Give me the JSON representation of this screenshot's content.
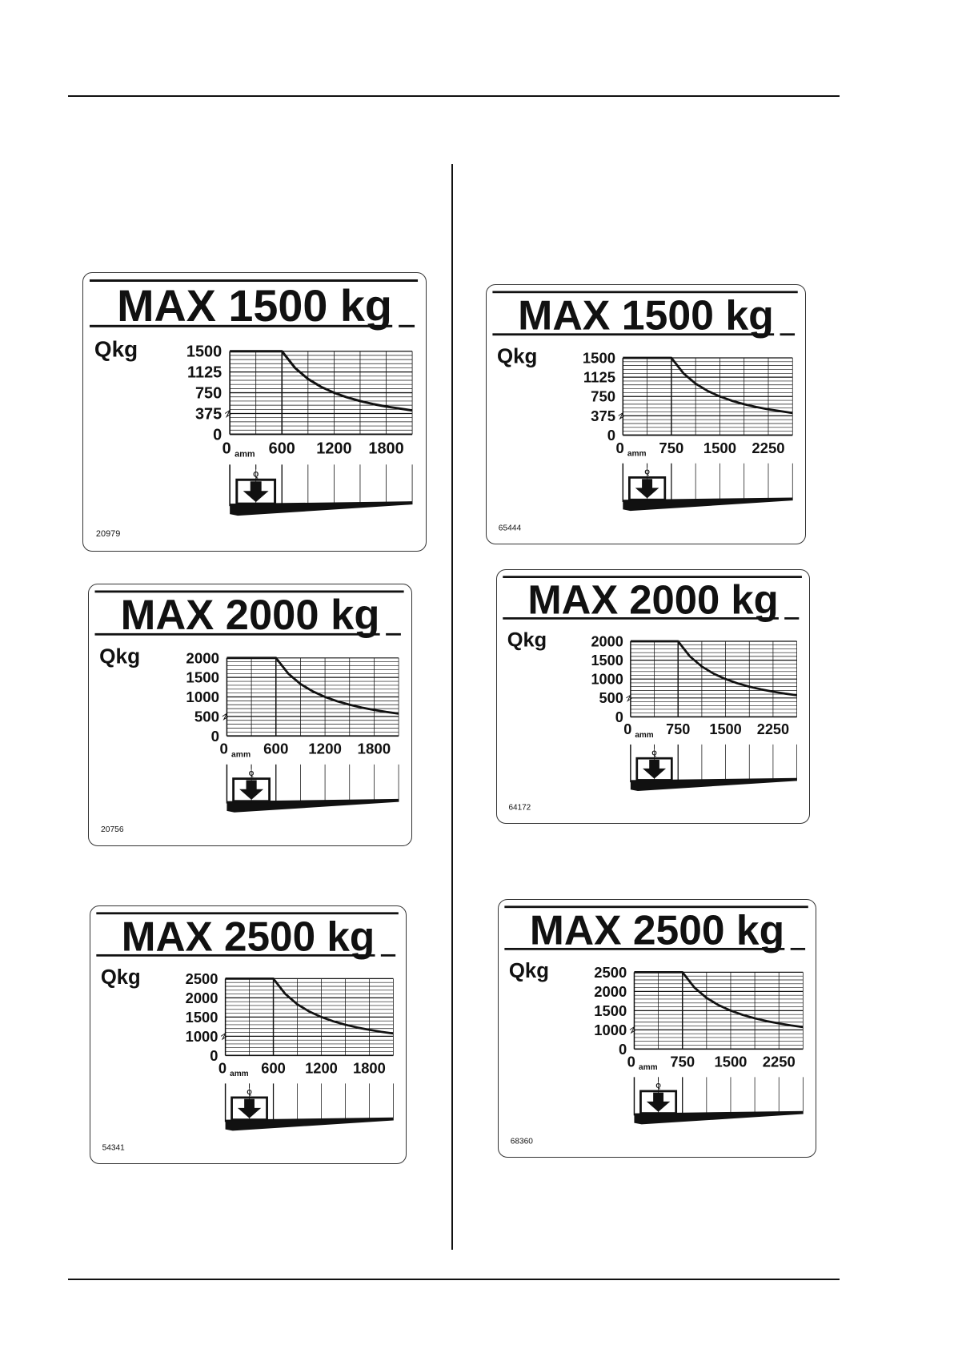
{
  "plates": [
    {
      "title": "MAX 1500 kg",
      "qkg_label": "Qkg",
      "code": "20979",
      "q_label": "Q",
      "amm_label": "amm",
      "chart_data": {
        "type": "line",
        "title": "MAX 1500 kg",
        "ylabel": "Qkg",
        "yticks": [
          "1500",
          "1125",
          "750",
          "375",
          "0"
        ],
        "xticks": [
          "0",
          "600",
          "1200",
          "1800"
        ],
        "xlim": [
          0,
          2100
        ],
        "ylim": [
          0,
          1500
        ],
        "x": [
          0,
          600,
          750,
          900,
          1050,
          1200,
          1350,
          1500,
          1650,
          1800,
          2100
        ],
        "y": [
          1500,
          1500,
          1200,
          1000,
          857,
          750,
          667,
          600,
          545,
          500,
          430
        ]
      }
    },
    {
      "title": "MAX 1500 kg",
      "qkg_label": "Qkg",
      "code": "65444",
      "q_label": "Q",
      "amm_label": "amm",
      "chart_data": {
        "type": "line",
        "title": "MAX 1500 kg",
        "ylabel": "Qkg",
        "yticks": [
          "1500",
          "1125",
          "750",
          "375",
          "0"
        ],
        "xticks": [
          "0",
          "750",
          "1500",
          "2250"
        ],
        "xlim": [
          0,
          2625
        ],
        "ylim": [
          0,
          1500
        ],
        "x": [
          0,
          750,
          937,
          1125,
          1312,
          1500,
          1687,
          1875,
          2062,
          2250,
          2625
        ],
        "y": [
          1500,
          1500,
          1200,
          1000,
          857,
          750,
          667,
          600,
          545,
          500,
          430
        ]
      }
    },
    {
      "title": "MAX 2000 kg",
      "qkg_label": "Qkg",
      "code": "20756",
      "q_label": "Q",
      "amm_label": "amm",
      "chart_data": {
        "type": "line",
        "title": "MAX 2000 kg",
        "ylabel": "Qkg",
        "yticks": [
          "2000",
          "1500",
          "1000",
          "500",
          "0"
        ],
        "xticks": [
          "0",
          "600",
          "1200",
          "1800"
        ],
        "xlim": [
          0,
          2100
        ],
        "ylim": [
          0,
          2000
        ],
        "x": [
          0,
          600,
          750,
          900,
          1050,
          1200,
          1350,
          1500,
          1650,
          1800,
          1950,
          2100
        ],
        "y": [
          2000,
          2000,
          1600,
          1333,
          1143,
          1000,
          889,
          800,
          727,
          667,
          615,
          571
        ]
      }
    },
    {
      "title": "MAX 2000 kg",
      "qkg_label": "Qkg",
      "code": "64172",
      "q_label": "Q",
      "amm_label": "amm",
      "chart_data": {
        "type": "line",
        "title": "MAX 2000 kg",
        "ylabel": "Qkg",
        "yticks": [
          "2000",
          "1500",
          "1000",
          "500",
          "0"
        ],
        "xticks": [
          "0",
          "750",
          "1500",
          "2250"
        ],
        "xlim": [
          0,
          2625
        ],
        "ylim": [
          0,
          2000
        ],
        "x": [
          0,
          750,
          937,
          1125,
          1312,
          1500,
          1687,
          1875,
          2062,
          2250,
          2437,
          2625
        ],
        "y": [
          2000,
          2000,
          1600,
          1333,
          1143,
          1000,
          889,
          800,
          727,
          667,
          615,
          571
        ]
      }
    },
    {
      "title": "MAX 2500 kg",
      "qkg_label": "Qkg",
      "code": "54341",
      "q_label": "Q",
      "amm_label": "amm",
      "chart_data": {
        "type": "line",
        "title": "MAX 2500 kg",
        "ylabel": "Qkg",
        "yticks": [
          "2500",
          "2000",
          "1500",
          "1000",
          "0"
        ],
        "xticks": [
          "0",
          "600",
          "1200",
          "1800"
        ],
        "xlim": [
          0,
          2100
        ],
        "ylim": [
          0,
          2500
        ],
        "x": [
          0,
          600,
          750,
          900,
          1050,
          1200,
          1350,
          1500,
          1650,
          1800,
          1950,
          2100
        ],
        "y": [
          2500,
          2500,
          2000,
          1667,
          1429,
          1250,
          1111,
          1000,
          909,
          833,
          769,
          714
        ]
      }
    },
    {
      "title": "MAX 2500 kg",
      "qkg_label": "Qkg",
      "code": "68360",
      "q_label": "Q",
      "amm_label": "amm",
      "chart_data": {
        "type": "line",
        "title": "MAX 2500 kg",
        "ylabel": "Qkg",
        "yticks": [
          "2500",
          "2000",
          "1500",
          "1000",
          "0"
        ],
        "xticks": [
          "0",
          "750",
          "1500",
          "2250"
        ],
        "xlim": [
          0,
          2625
        ],
        "ylim": [
          0,
          2500
        ],
        "x": [
          0,
          750,
          937,
          1125,
          1312,
          1500,
          1687,
          1875,
          2062,
          2250,
          2437,
          2625
        ],
        "y": [
          2500,
          2500,
          2000,
          1667,
          1429,
          1250,
          1111,
          1000,
          909,
          833,
          769,
          714
        ]
      }
    }
  ]
}
